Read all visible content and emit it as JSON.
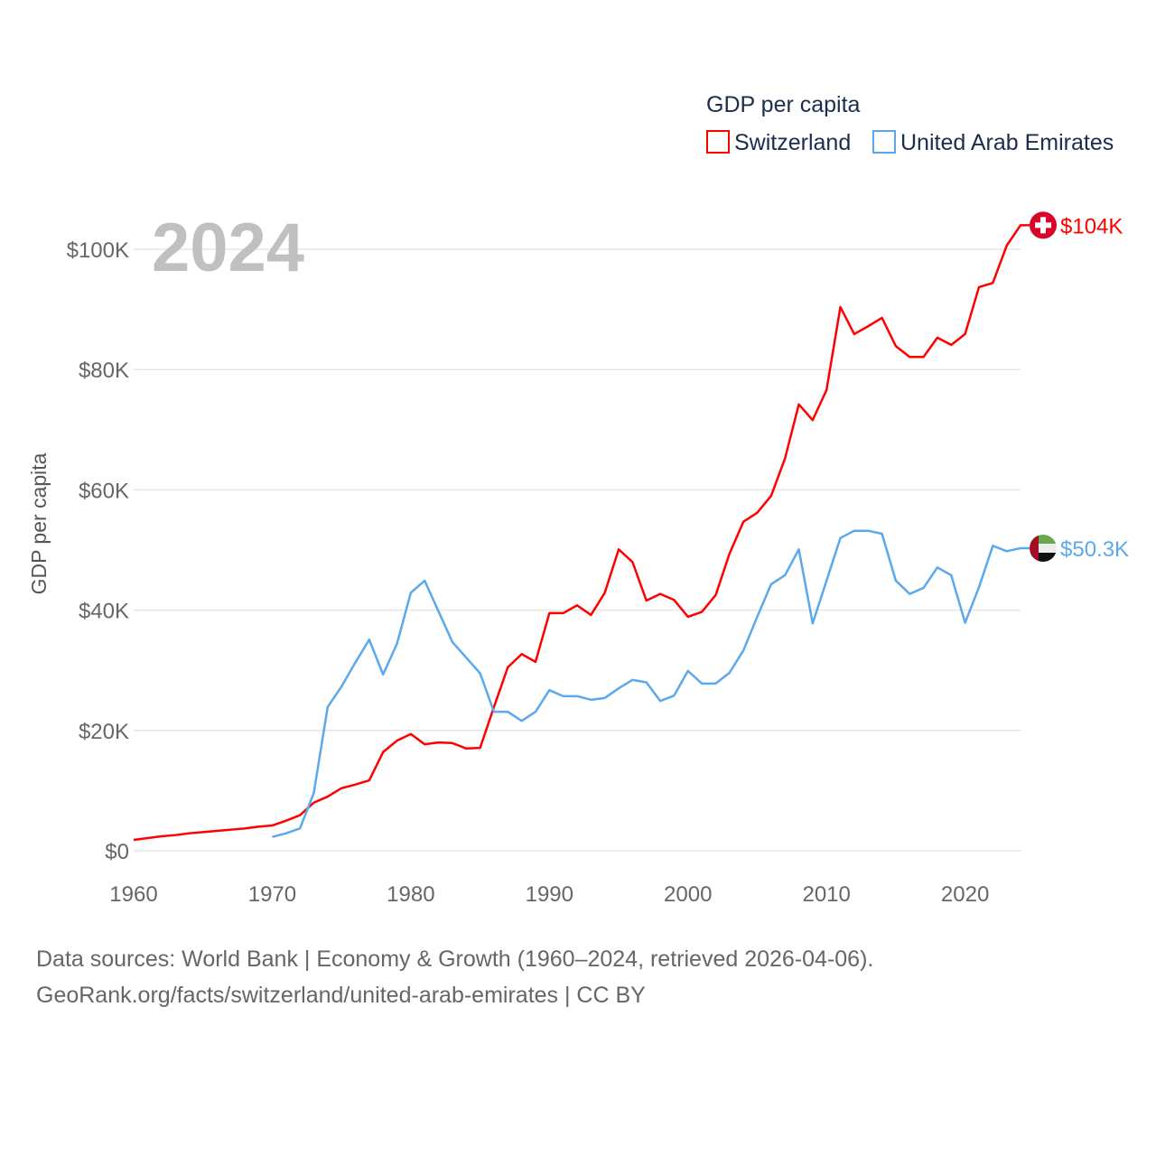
{
  "chart_data": {
    "type": "line",
    "title": "GDP per capita",
    "ylabel": "GDP per capita",
    "xlabel": "",
    "year_watermark": "2024",
    "xlim": [
      1960,
      2024
    ],
    "ylim": [
      0,
      100000
    ],
    "x_ticks": [
      1960,
      1970,
      1980,
      1990,
      2000,
      2010,
      2020
    ],
    "y_ticks": [
      0,
      20000,
      40000,
      60000,
      80000,
      100000
    ],
    "y_tick_labels": [
      "$0",
      "$20K",
      "$40K",
      "$60K",
      "$80K",
      "$100K"
    ],
    "grid": true,
    "legend_position": "top-right",
    "series": [
      {
        "name": "Switzerland",
        "color": "#ff0000",
        "end_label": "$104K",
        "flag": "switzerland-flag",
        "start_year": 1960,
        "values": [
          1.8,
          2.1,
          2.4,
          2.6,
          2.9,
          3.1,
          3.3,
          3.5,
          3.7,
          4.0,
          4.2,
          5.0,
          5.9,
          8.0,
          9.0,
          10.4,
          11.0,
          11.7,
          16.4,
          18.3,
          19.4,
          17.7,
          18.0,
          17.9,
          17.0,
          17.1,
          23.9,
          30.5,
          32.7,
          31.4,
          39.5,
          39.5,
          40.8,
          39.2,
          42.9,
          50.1,
          48.0,
          41.6,
          42.7,
          41.7,
          38.9,
          39.7,
          42.5,
          49.4,
          54.7,
          56.2,
          59.0,
          65.2,
          74.2,
          71.6,
          76.6,
          90.4,
          85.9,
          87.2,
          88.6,
          83.9,
          82.1,
          82.1,
          85.3,
          84.1,
          85.9,
          93.7,
          94.4,
          100.6,
          104.0
        ]
      },
      {
        "name": "United Arab Emirates",
        "color": "#5ba8ec",
        "end_label": "$50.3K",
        "flag": "uae-flag",
        "start_year": 1970,
        "values": [
          2.3,
          2.9,
          3.7,
          9.6,
          23.9,
          27.3,
          31.3,
          35.1,
          29.3,
          34.4,
          42.9,
          44.9,
          39.8,
          34.7,
          32.1,
          29.5,
          23.1,
          23.1,
          21.6,
          23.1,
          26.7,
          25.7,
          25.7,
          25.1,
          25.4,
          27.0,
          28.4,
          28.0,
          24.9,
          25.8,
          29.9,
          27.8,
          27.8,
          29.6,
          33.3,
          38.9,
          44.3,
          45.8,
          50.1,
          37.8,
          44.9,
          52.0,
          53.2,
          53.2,
          52.7,
          44.9,
          42.7,
          43.7,
          47.1,
          45.8,
          37.9,
          43.8,
          50.7,
          49.8,
          50.3
        ]
      }
    ],
    "value_unit": "thousand USD"
  },
  "footer": {
    "line1": "Data sources: World Bank | Economy & Growth (1960–2024, retrieved 2026-04-06).",
    "line2": "GeoRank.org/facts/switzerland/united-arab-emirates | CC BY"
  }
}
